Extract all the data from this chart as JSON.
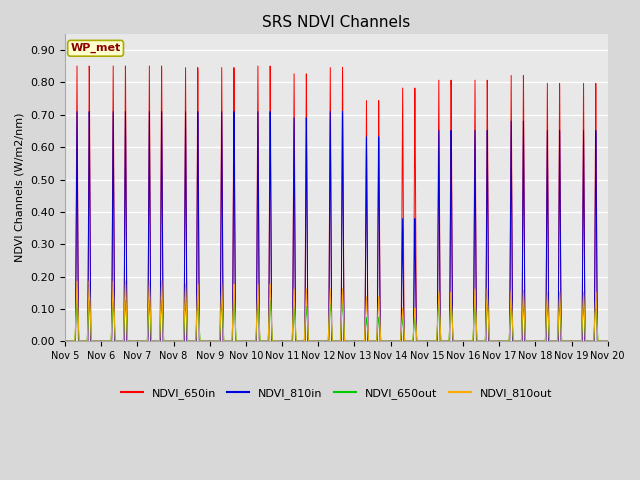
{
  "title": "SRS NDVI Channels",
  "ylabel": "NDVI Channels (W/m2/nm)",
  "annotation": "WP_met",
  "ylim": [
    0.0,
    0.95
  ],
  "yticks": [
    0.0,
    0.1,
    0.2,
    0.3,
    0.4,
    0.5,
    0.6,
    0.7,
    0.8,
    0.9
  ],
  "xtick_labels": [
    "Nov 5",
    "Nov 6",
    "Nov 7",
    "Nov 8",
    "Nov 9",
    "Nov 10",
    "Nov 11",
    "Nov 12",
    "Nov 13",
    "Nov 14",
    "Nov 15",
    "Nov 16",
    "Nov 17",
    "Nov 18",
    "Nov 19",
    "Nov 20"
  ],
  "colors": {
    "NDVI_650in": "#ff0000",
    "NDVI_810in": "#0000dd",
    "NDVI_650out": "#00cc00",
    "NDVI_810out": "#ffaa00"
  },
  "plot_bg_color": "#e8e8e8",
  "fig_bg_color": "#d8d8d8",
  "peaks_650in": [
    0.875,
    0.875,
    0.875,
    0.87,
    0.87,
    0.875,
    0.85,
    0.87,
    0.765,
    0.805,
    0.83,
    0.83,
    0.845,
    0.82,
    0.82
  ],
  "peaks_810in": [
    0.73,
    0.73,
    0.73,
    0.73,
    0.73,
    0.73,
    0.71,
    0.73,
    0.65,
    0.39,
    0.67,
    0.67,
    0.7,
    0.67,
    0.67
  ],
  "peaks_650out": [
    0.13,
    0.13,
    0.13,
    0.13,
    0.13,
    0.13,
    0.11,
    0.13,
    0.075,
    0.075,
    0.13,
    0.13,
    0.12,
    0.12,
    0.12
  ],
  "peaks_810out": [
    0.19,
    0.19,
    0.19,
    0.18,
    0.18,
    0.18,
    0.165,
    0.165,
    0.14,
    0.105,
    0.155,
    0.165,
    0.16,
    0.155,
    0.155
  ],
  "num_days": 15,
  "day_start": 5
}
